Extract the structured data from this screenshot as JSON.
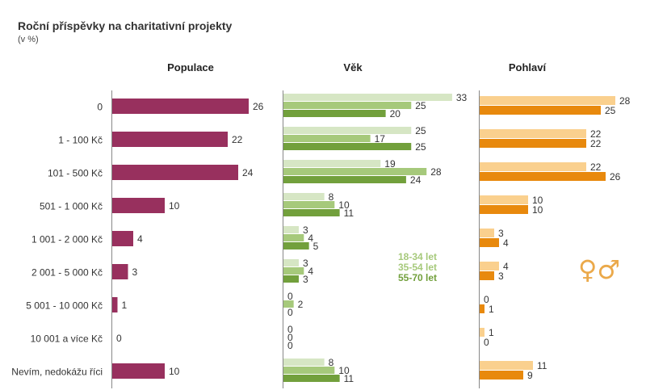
{
  "header": {
    "title": "Roční příspěvky na charitativní projekty",
    "subtitle": "(v %)"
  },
  "colors": {
    "populace": "#98305E",
    "vek": [
      "#D6E6C4",
      "#A6C97B",
      "#72A03C"
    ],
    "pohlavi": [
      "#FAD08E",
      "#E8890D"
    ],
    "axis": "#888888",
    "symbol": "#EBA94A"
  },
  "chart_data": [
    {
      "type": "bar",
      "orientation": "horizontal",
      "title": "Populace",
      "categories": [
        "0",
        "1 - 100  Kč",
        "101 - 500 Kč",
        "501 - 1 000 Kč",
        "1 001 - 2 000 Kč",
        "2 001 - 5 000 Kč",
        "5 001 - 10 000 Kč",
        "10 001 a více Kč",
        "Nevím, nedokážu říci"
      ],
      "series": [
        {
          "name": "Populace",
          "values": [
            26,
            22,
            24,
            10,
            4,
            3,
            1,
            0,
            10
          ]
        }
      ]
    },
    {
      "type": "bar",
      "orientation": "horizontal",
      "title": "Věk",
      "categories": [
        "0",
        "1 - 100  Kč",
        "101 - 500 Kč",
        "501 - 1 000 Kč",
        "1 001 - 2 000 Kč",
        "2 001 - 5 000 Kč",
        "5 001 - 10 000 Kč",
        "10 001 a více Kč",
        "Nevím, nedokážu říci"
      ],
      "series": [
        {
          "name": "18-34 let",
          "values": [
            33,
            25,
            19,
            8,
            3,
            3,
            0,
            0,
            8
          ]
        },
        {
          "name": "35-54 let",
          "values": [
            25,
            17,
            28,
            10,
            4,
            4,
            2,
            0,
            10
          ]
        },
        {
          "name": "55-70 let",
          "values": [
            20,
            25,
            24,
            11,
            5,
            3,
            0,
            0,
            11
          ]
        }
      ]
    },
    {
      "type": "bar",
      "orientation": "horizontal",
      "title": "Pohlaví",
      "categories": [
        "0",
        "1 - 100  Kč",
        "101 - 500 Kč",
        "501 - 1 000 Kč",
        "1 001 - 2 000 Kč",
        "2 001 - 5 000 Kč",
        "5 001 - 10 000 Kč",
        "10 001 a více Kč",
        "Nevím, nedokážu říci"
      ],
      "series": [
        {
          "name": "female",
          "values": [
            28,
            22,
            22,
            10,
            3,
            4,
            0,
            1,
            11
          ]
        },
        {
          "name": "male",
          "values": [
            25,
            22,
            26,
            10,
            4,
            3,
            1,
            0,
            9
          ]
        }
      ],
      "legend_symbols": "♀♂"
    }
  ]
}
